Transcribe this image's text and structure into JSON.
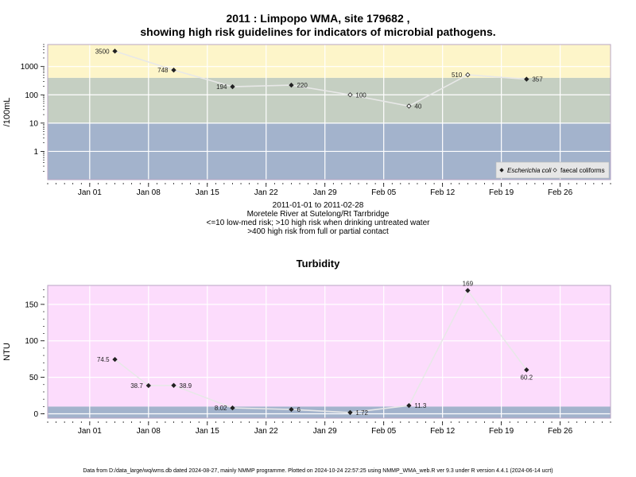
{
  "page": {
    "title_line1": "2011 : Limpopo WMA, site 179682 ,",
    "title_line2": "showing high risk guidelines for indicators of microbial pathogens.",
    "subtitle_lines": [
      "2011-01-01 to 2011-02-28",
      "Moretele River at Sutelong/Rt Tarrbridge",
      "<=10 low-med risk; >10 high risk when drinking untreated water",
      ">400 high risk from full or partial contact"
    ],
    "footer": "Data from D:/data_large/wq/wms.db dated 2024-08-27, mainly NMMP programme. Plotted on 2024-10-24 22:57:25 using NMMP_WMA_web.R ver 9.3 under R version 4.4.1 (2024-06-14 ucrt)"
  },
  "chart_data": [
    {
      "type": "line",
      "scale": "log",
      "ylabel": "/100mL",
      "xlim": [
        "2010-12-27",
        "2011-03-04"
      ],
      "x_ticks": [
        "Jan 01",
        "Jan 08",
        "Jan 15",
        "Jan 22",
        "Jan 29",
        "Feb 05",
        "Feb 12",
        "Feb 19",
        "Feb 26"
      ],
      "x_tick_dates": [
        "2011-01-01",
        "2011-01-08",
        "2011-01-15",
        "2011-01-22",
        "2011-01-29",
        "2011-02-05",
        "2011-02-12",
        "2011-02-19",
        "2011-02-26"
      ],
      "y_ticks": [
        "1",
        "10",
        "100",
        "1000"
      ],
      "y_tick_values": [
        1,
        10,
        100,
        1000
      ],
      "ylim": [
        0.1,
        6000
      ],
      "bands": [
        {
          "from": 0.1,
          "to": 10,
          "color": "#a3b3cc"
        },
        {
          "from": 10,
          "to": 400,
          "color": "#c5cfc2"
        },
        {
          "from": 400,
          "to": 6000,
          "color": "#fdf5c9"
        }
      ],
      "grid": true,
      "legend_position": "bottom-right",
      "series": [
        {
          "name": "Escherichia coli",
          "marker": "filled",
          "line_color": "#e8e8e8",
          "points": [
            {
              "x": "2011-01-04",
              "y": 3500,
              "label": "3500",
              "side": "left"
            },
            {
              "x": "2011-01-11",
              "y": 748,
              "label": "748",
              "side": "left"
            },
            {
              "x": "2011-01-18",
              "y": 194,
              "label": "194",
              "side": "left"
            },
            {
              "x": "2011-01-25",
              "y": 220,
              "label": "220",
              "side": "right"
            },
            {
              "x": "2011-02-22",
              "y": 357,
              "label": "357",
              "side": "right"
            }
          ]
        },
        {
          "name": "faecal coliforms",
          "marker": "open",
          "line_color": "#e8e8e8",
          "points": [
            {
              "x": "2011-02-01",
              "y": 100,
              "label": "100",
              "side": "right"
            },
            {
              "x": "2011-02-08",
              "y": 40,
              "label": "40",
              "side": "right"
            },
            {
              "x": "2011-02-15",
              "y": 510,
              "label": "510",
              "side": "left"
            }
          ]
        }
      ]
    },
    {
      "type": "line",
      "title": "Turbidity",
      "ylabel": "NTU",
      "xlim": [
        "2010-12-27",
        "2011-03-04"
      ],
      "x_ticks": [
        "Jan 01",
        "Jan 08",
        "Jan 15",
        "Jan 22",
        "Jan 29",
        "Feb 05",
        "Feb 12",
        "Feb 19",
        "Feb 26"
      ],
      "x_tick_dates": [
        "2011-01-01",
        "2011-01-08",
        "2011-01-15",
        "2011-01-22",
        "2011-01-29",
        "2011-02-05",
        "2011-02-12",
        "2011-02-19",
        "2011-02-26"
      ],
      "y_ticks": [
        "0",
        "50",
        "100",
        "150"
      ],
      "y_tick_values": [
        0,
        50,
        100,
        150
      ],
      "ylim": [
        -6,
        176
      ],
      "bands": [
        {
          "from": -6,
          "to": 10,
          "color": "#a3b3cc"
        },
        {
          "from": 10,
          "to": 176,
          "color": "#fcdcfc"
        }
      ],
      "grid": true,
      "series": [
        {
          "name": "Turbidity",
          "marker": "filled",
          "line_color": "#e8e8e8",
          "points": [
            {
              "x": "2011-01-04",
              "y": 74.5,
              "label": "74.5",
              "side": "left"
            },
            {
              "x": "2011-01-08",
              "y": 38.7,
              "label": "38.7",
              "side": "left"
            },
            {
              "x": "2011-01-11",
              "y": 38.9,
              "label": "38.9",
              "side": "right"
            },
            {
              "x": "2011-01-18",
              "y": 8.02,
              "label": "8.02",
              "side": "left"
            },
            {
              "x": "2011-01-25",
              "y": 6,
              "label": "6",
              "side": "right"
            },
            {
              "x": "2011-02-01",
              "y": 1.72,
              "label": "1.72",
              "side": "right"
            },
            {
              "x": "2011-02-08",
              "y": 11.3,
              "label": "11.3",
              "side": "right"
            },
            {
              "x": "2011-02-15",
              "y": 169,
              "label": "169",
              "side": "above"
            },
            {
              "x": "2011-02-22",
              "y": 60.2,
              "label": "60.2",
              "side": "below"
            }
          ]
        }
      ]
    }
  ]
}
